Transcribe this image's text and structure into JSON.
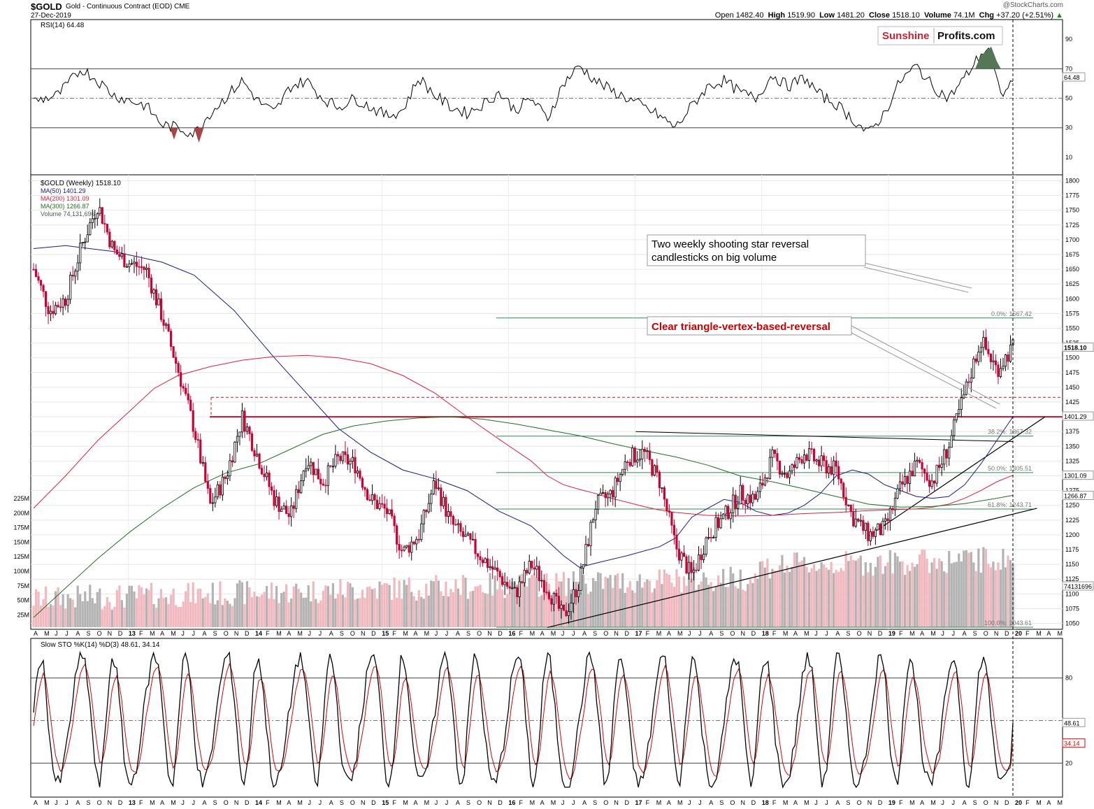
{
  "header": {
    "symbol": "$GOLD",
    "description": "Gold - Continuous Contract (EOD)",
    "exchange": "CME",
    "date": "27-Dec-2019",
    "brand": "@StockCharts.com",
    "open_label": "Open",
    "open": "1482.40",
    "high_label": "High",
    "high": "1519.90",
    "low_label": "Low",
    "low": "1481.20",
    "close_label": "Close",
    "close": "1518.10",
    "volume_label": "Volume",
    "volume": "74.1M",
    "chg_label": "Chg",
    "chg": "+37.20 (+2.51%)"
  },
  "logo": {
    "part1": "Sunshine",
    "part2": "Profits.com"
  },
  "colors": {
    "bull": "#000000",
    "bear": "#cc0033",
    "ma50": "#1a1a8c",
    "ma200": "#dd2244",
    "ma300": "#207020",
    "fib": "#2e8b57",
    "stoK": "#000000",
    "stoD": "#dd0000",
    "rsi": "#000000"
  },
  "chart_data": [
    {
      "type": "line",
      "title": "RSI(14) 64.48",
      "series": [
        {
          "name": "RSI(14)",
          "last": 64.48
        }
      ],
      "ylim": [
        0,
        100
      ],
      "yticks": [
        "90",
        "70",
        "50",
        "30",
        "10"
      ],
      "reference_lines": [
        70,
        50,
        30
      ],
      "last_label": "64.48"
    },
    {
      "type": "candlestick",
      "title": "$GOLD (Weekly) 1518.10",
      "legend": [
        {
          "name": "MA(50) 1401.29",
          "color": "#1a1a8c"
        },
        {
          "name": "MA(200) 1301.09",
          "color": "#dd2244"
        },
        {
          "name": "MA(300) 1266.87",
          "color": "#207020"
        },
        {
          "name": "Volume 74,131,696",
          "color": "#888888"
        }
      ],
      "ylim": [
        1040,
        1810
      ],
      "yticks": [
        "1800",
        "1775",
        "1750",
        "1725",
        "1700",
        "1675",
        "1650",
        "1625",
        "1600",
        "1575",
        "1550",
        "1525",
        "1500",
        "1475",
        "1450",
        "1425",
        "1400",
        "1375",
        "1350",
        "1325",
        "1300",
        "1275",
        "1250",
        "1225",
        "1200",
        "1175",
        "1150",
        "1125",
        "1100",
        "1075",
        "1050"
      ],
      "volume_ticks": [
        "225M",
        "200M",
        "175M",
        "150M",
        "125M",
        "100M",
        "75M",
        "50M",
        "25M"
      ],
      "price_labels": [
        "1518.10",
        "1401.29",
        "1301.09",
        "1266.87",
        "74131696"
      ],
      "fib_levels": [
        {
          "label": "0.0%: 1567.42",
          "value": 1567.42
        },
        {
          "label": "38.2%: 1367.32",
          "value": 1367.32
        },
        {
          "label": "50.0%: 1305.51",
          "value": 1305.51
        },
        {
          "label": "61.8%: 1243.71",
          "value": 1243.71
        },
        {
          "label": "100.0%: 1043.61",
          "value": 1043.61
        }
      ],
      "resistance": 1400,
      "dashed_level": 1433,
      "series": [
        {
          "name": "MA(50)",
          "points": [
            [
              0,
              1685
            ],
            [
              4,
              1690
            ],
            [
              10,
              1680
            ],
            [
              16,
              1662
            ],
            [
              20,
              1640
            ],
            [
              25,
              1580
            ],
            [
              30,
              1500
            ],
            [
              34,
              1440
            ],
            [
              38,
              1380
            ],
            [
              42,
              1340
            ],
            [
              46,
              1310
            ],
            [
              50,
              1295
            ],
            [
              54,
              1275
            ],
            [
              58,
              1240
            ],
            [
              62,
              1215
            ],
            [
              64,
              1190
            ],
            [
              66,
              1165
            ],
            [
              68,
              1145
            ],
            [
              70,
              1152
            ],
            [
              74,
              1165
            ],
            [
              78,
              1180
            ],
            [
              80,
              1195
            ],
            [
              82,
              1230
            ],
            [
              84,
              1245
            ],
            [
              86,
              1260
            ],
            [
              88,
              1255
            ],
            [
              90,
              1240
            ],
            [
              92,
              1233
            ],
            [
              94,
              1237
            ],
            [
              96,
              1250
            ],
            [
              98,
              1270
            ],
            [
              100,
              1300
            ],
            [
              102,
              1310
            ],
            [
              104,
              1303
            ],
            [
              106,
              1285
            ],
            [
              108,
              1275
            ],
            [
              110,
              1265
            ],
            [
              112,
              1262
            ],
            [
              114,
              1265
            ],
            [
              116,
              1285
            ],
            [
              118,
              1320
            ],
            [
              120,
              1360
            ],
            [
              122,
              1400
            ]
          ]
        },
        {
          "name": "MA(200)",
          "points": [
            [
              0,
              1245
            ],
            [
              4,
              1300
            ],
            [
              8,
              1360
            ],
            [
              12,
              1410
            ],
            [
              15,
              1448
            ],
            [
              18,
              1470
            ],
            [
              22,
              1485
            ],
            [
              26,
              1496
            ],
            [
              30,
              1502
            ],
            [
              34,
              1504
            ],
            [
              38,
              1500
            ],
            [
              42,
              1490
            ],
            [
              46,
              1470
            ],
            [
              50,
              1440
            ],
            [
              54,
              1400
            ],
            [
              58,
              1362
            ],
            [
              62,
              1325
            ],
            [
              64,
              1300
            ],
            [
              66,
              1285
            ],
            [
              68,
              1277
            ],
            [
              70,
              1270
            ],
            [
              72,
              1262
            ],
            [
              74,
              1255
            ],
            [
              76,
              1248
            ],
            [
              78,
              1242
            ],
            [
              80,
              1238
            ],
            [
              84,
              1233
            ],
            [
              88,
              1232
            ],
            [
              92,
              1233
            ],
            [
              96,
              1236
            ],
            [
              100,
              1238
            ],
            [
              104,
              1241
            ],
            [
              108,
              1243
            ],
            [
              110,
              1244
            ],
            [
              112,
              1247
            ],
            [
              114,
              1252
            ],
            [
              116,
              1262
            ],
            [
              118,
              1275
            ],
            [
              120,
              1290
            ],
            [
              122,
              1301
            ]
          ]
        },
        {
          "name": "MA(300)",
          "points": [
            [
              0,
              1060
            ],
            [
              4,
              1110
            ],
            [
              8,
              1160
            ],
            [
              12,
              1205
            ],
            [
              16,
              1245
            ],
            [
              20,
              1280
            ],
            [
              24,
              1305
            ],
            [
              28,
              1320
            ],
            [
              32,
              1345
            ],
            [
              36,
              1370
            ],
            [
              40,
              1385
            ],
            [
              44,
              1393
            ],
            [
              48,
              1398
            ],
            [
              52,
              1400
            ],
            [
              56,
              1396
            ],
            [
              60,
              1388
            ],
            [
              64,
              1378
            ],
            [
              68,
              1368
            ],
            [
              72,
              1355
            ],
            [
              76,
              1343
            ],
            [
              80,
              1332
            ],
            [
              84,
              1318
            ],
            [
              88,
              1300
            ],
            [
              92,
              1290
            ],
            [
              96,
              1278
            ],
            [
              100,
              1265
            ],
            [
              104,
              1252
            ],
            [
              108,
              1247
            ],
            [
              112,
              1248
            ],
            [
              116,
              1253
            ],
            [
              120,
              1262
            ],
            [
              122,
              1267
            ]
          ]
        }
      ]
    },
    {
      "type": "line",
      "title": "Slow STO %K(14) %D(3) 48.61, 34.14",
      "series": [
        {
          "name": "%K(14)",
          "last": 48.61
        },
        {
          "name": "%D(3)",
          "last": 34.14
        }
      ],
      "ylim": [
        0,
        100
      ],
      "yticks": [
        "80",
        "20"
      ],
      "reference_lines": [
        80,
        50,
        20
      ],
      "last_labels": [
        "48.61",
        "34.14"
      ]
    }
  ],
  "x_axis": {
    "labels": [
      "A",
      "M",
      "J",
      "J",
      "A",
      "S",
      "O",
      "N",
      "D",
      "13",
      "F",
      "M",
      "A",
      "M",
      "J",
      "J",
      "A",
      "S",
      "O",
      "N",
      "D",
      "14",
      "F",
      "M",
      "A",
      "M",
      "J",
      "J",
      "A",
      "S",
      "O",
      "N",
      "D",
      "15",
      "F",
      "M",
      "A",
      "M",
      "J",
      "J",
      "A",
      "S",
      "O",
      "N",
      "D",
      "16",
      "F",
      "M",
      "A",
      "M",
      "J",
      "J",
      "A",
      "S",
      "O",
      "N",
      "D",
      "17",
      "F",
      "M",
      "A",
      "M",
      "J",
      "J",
      "A",
      "S",
      "O",
      "N",
      "D",
      "18",
      "F",
      "M",
      "A",
      "M",
      "J",
      "J",
      "A",
      "S",
      "O",
      "N",
      "D",
      "19",
      "F",
      "M",
      "A",
      "M",
      "J",
      "J",
      "A",
      "S",
      "O",
      "N",
      "D",
      "20",
      "F",
      "M",
      "A",
      "M"
    ],
    "year_labels": [
      "13",
      "14",
      "15",
      "16",
      "17",
      "18",
      "19",
      "20"
    ]
  },
  "annotations": [
    {
      "text_line1": "Two weekly shooting star reversal",
      "text_line2": "candlesticks on big volume"
    },
    {
      "text_line1": "Clear triangle-vertex-based-reversal"
    }
  ]
}
